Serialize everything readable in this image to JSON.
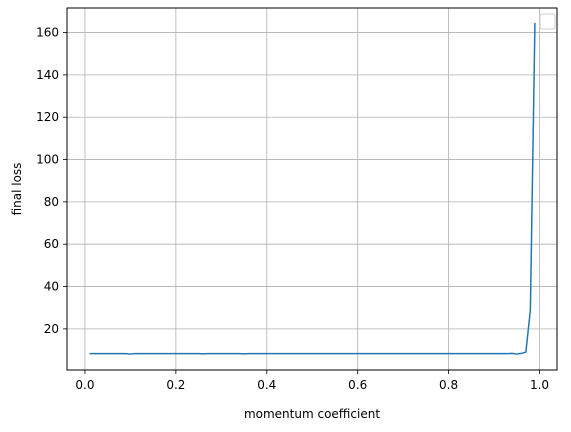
{
  "chart_data": {
    "type": "line",
    "title": "",
    "xlabel": "momentum coefficient",
    "ylabel": "final loss",
    "xlim": [
      -0.0395,
      1.0385
    ],
    "ylim": [
      0.57,
      171.6
    ],
    "xticks": [
      0.0,
      0.2,
      0.4,
      0.6,
      0.8,
      1.0
    ],
    "xtick_labels": [
      "0.0",
      "0.2",
      "0.4",
      "0.6",
      "0.8",
      "1.0"
    ],
    "yticks": [
      20,
      40,
      60,
      80,
      100,
      120,
      140,
      160
    ],
    "ytick_labels": [
      "20",
      "40",
      "60",
      "80",
      "100",
      "120",
      "140",
      "160"
    ],
    "grid": true,
    "legend": {
      "placement": "top-right",
      "entries": []
    },
    "series": [
      {
        "color": "#1f77b4",
        "x": [
          0.01,
          0.02,
          0.03,
          0.04,
          0.05,
          0.06,
          0.07,
          0.08,
          0.09,
          0.1,
          0.11,
          0.12,
          0.13,
          0.14,
          0.15,
          0.16,
          0.17,
          0.18,
          0.19,
          0.2,
          0.21,
          0.22,
          0.23,
          0.24,
          0.25,
          0.26,
          0.27,
          0.28,
          0.29,
          0.3,
          0.31,
          0.32,
          0.33,
          0.34,
          0.35,
          0.36,
          0.37,
          0.38,
          0.39,
          0.4,
          0.41,
          0.42,
          0.43,
          0.44,
          0.45,
          0.46,
          0.47,
          0.48,
          0.49,
          0.5,
          0.51,
          0.52,
          0.53,
          0.54,
          0.55,
          0.56,
          0.57,
          0.58,
          0.59,
          0.6,
          0.61,
          0.62,
          0.63,
          0.64,
          0.65,
          0.66,
          0.67,
          0.68,
          0.69,
          0.7,
          0.71,
          0.72,
          0.73,
          0.74,
          0.75,
          0.76,
          0.77,
          0.78,
          0.79,
          0.8,
          0.81,
          0.82,
          0.83,
          0.84,
          0.85,
          0.86,
          0.87,
          0.88,
          0.89,
          0.9,
          0.91,
          0.92,
          0.93,
          0.94,
          0.95,
          0.96,
          0.97,
          0.98,
          0.99
        ],
        "y": [
          8.3,
          8.3,
          8.3,
          8.3,
          8.3,
          8.3,
          8.3,
          8.3,
          8.3,
          8.1,
          8.3,
          8.3,
          8.3,
          8.3,
          8.3,
          8.3,
          8.3,
          8.3,
          8.3,
          8.3,
          8.3,
          8.3,
          8.3,
          8.3,
          8.3,
          8.2,
          8.3,
          8.3,
          8.3,
          8.3,
          8.3,
          8.3,
          8.3,
          8.3,
          8.2,
          8.3,
          8.3,
          8.3,
          8.3,
          8.3,
          8.3,
          8.3,
          8.3,
          8.3,
          8.3,
          8.3,
          8.3,
          8.3,
          8.3,
          8.3,
          8.3,
          8.3,
          8.3,
          8.3,
          8.3,
          8.3,
          8.3,
          8.3,
          8.3,
          8.3,
          8.3,
          8.3,
          8.3,
          8.3,
          8.3,
          8.3,
          8.3,
          8.3,
          8.3,
          8.3,
          8.3,
          8.3,
          8.3,
          8.3,
          8.3,
          8.3,
          8.3,
          8.3,
          8.3,
          8.3,
          8.3,
          8.3,
          8.3,
          8.3,
          8.3,
          8.3,
          8.3,
          8.3,
          8.3,
          8.3,
          8.3,
          8.3,
          8.3,
          8.4,
          8.1,
          8.4,
          9.0,
          29.0,
          164.5
        ]
      }
    ]
  }
}
